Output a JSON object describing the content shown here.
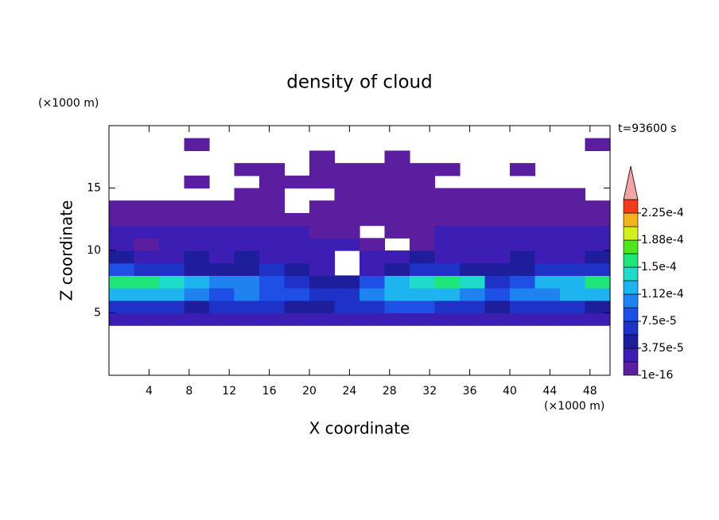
{
  "chart_data": {
    "type": "contour",
    "title": "density of cloud",
    "x_label": "X coordinate",
    "y_label": "Z coordinate",
    "x_unit": "(×1000 m)",
    "y_unit": "(×1000 m)",
    "annotation": "t=93600 s",
    "xlim": [
      0,
      50
    ],
    "ylim": [
      0,
      20
    ],
    "xticks": [
      4,
      8,
      12,
      16,
      20,
      24,
      28,
      32,
      36,
      40,
      44,
      48
    ],
    "yticks": [
      5,
      10,
      15
    ],
    "x": [
      1.25,
      3.75,
      6.25,
      8.75,
      11.25,
      13.75,
      16.25,
      18.75,
      21.25,
      23.75,
      26.25,
      28.75,
      31.25,
      33.75,
      36.25,
      38.75,
      41.25,
      43.75,
      46.25,
      48.75
    ],
    "y": [
      4.5,
      5.5,
      6.5,
      7.5,
      8.5,
      9.5,
      10.5,
      11.5,
      12.5,
      13.5,
      14.5,
      15.5,
      16.5,
      17.5,
      18.5
    ],
    "z": [
      [
        2e-05,
        2e-05,
        2e-05,
        2e-05,
        2e-05,
        2e-05,
        2e-05,
        2e-05,
        2e-05,
        2e-05,
        2e-05,
        2e-05,
        2e-05,
        2e-05,
        2e-05,
        2e-05,
        2e-05,
        2e-05,
        2e-05,
        2e-05
      ],
      [
        6e-05,
        7e-05,
        6e-05,
        5e-05,
        6e-05,
        7e-05,
        6e-05,
        5e-05,
        4e-05,
        6e-05,
        7e-05,
        8e-05,
        9e-05,
        7e-05,
        6e-05,
        5e-05,
        6e-05,
        7e-05,
        6e-05,
        5e-05
      ],
      [
        0.00012,
        0.00013,
        0.00012,
        0.0001,
        9e-05,
        0.0001,
        9e-05,
        8e-05,
        6e-05,
        7e-05,
        0.0001,
        0.00012,
        0.00012,
        0.00013,
        0.00011,
        8e-05,
        0.0001,
        0.00011,
        0.00012,
        0.00012
      ],
      [
        0.00016,
        0.00015,
        0.00014,
        0.00012,
        0.0001,
        0.00011,
        9e-05,
        7e-05,
        4e-05,
        5e-05,
        9e-05,
        0.00013,
        0.00014,
        0.00015,
        0.00014,
        7e-05,
        9e-05,
        0.00012,
        0.00013,
        0.00015
      ],
      [
        8e-05,
        7e-05,
        6e-05,
        5e-05,
        4e-05,
        5e-05,
        6e-05,
        5e-05,
        3e-05,
        null,
        3e-05,
        5e-05,
        6e-05,
        6e-05,
        5e-05,
        4e-05,
        5e-05,
        6e-05,
        6e-05,
        7e-05
      ],
      [
        4e-05,
        3e-05,
        3e-05,
        4e-05,
        3e-05,
        4e-05,
        3e-05,
        3e-05,
        3e-05,
        null,
        2e-05,
        3e-05,
        4e-05,
        3e-05,
        3e-05,
        3e-05,
        4e-05,
        3e-05,
        3e-05,
        4e-05
      ],
      [
        2e-05,
        1e-05,
        2e-05,
        3e-05,
        2e-05,
        3e-05,
        2e-05,
        2e-05,
        2e-05,
        2e-05,
        1e-05,
        null,
        1e-05,
        2e-05,
        2e-05,
        3e-05,
        2e-05,
        3e-05,
        2e-05,
        2e-05
      ],
      [
        2e-05,
        2e-05,
        3e-05,
        2e-05,
        2e-05,
        3e-05,
        2e-05,
        2e-05,
        1e-05,
        1e-05,
        null,
        1e-05,
        1e-05,
        2e-05,
        2e-05,
        2e-05,
        2e-05,
        2e-05,
        2e-05,
        2e-05
      ],
      [
        1e-05,
        1e-05,
        1e-05,
        1e-05,
        1e-05,
        1e-05,
        1e-05,
        1e-05,
        5e-06,
        5e-06,
        5e-06,
        5e-06,
        1e-05,
        1e-05,
        1e-05,
        1e-05,
        1e-05,
        1e-05,
        1e-05,
        1e-05
      ],
      [
        5e-06,
        5e-06,
        5e-06,
        5e-06,
        5e-06,
        5e-06,
        5e-06,
        null,
        5e-06,
        5e-06,
        5e-06,
        5e-06,
        5e-06,
        5e-06,
        5e-06,
        5e-06,
        5e-06,
        5e-06,
        5e-06,
        5e-06
      ],
      [
        null,
        null,
        null,
        null,
        null,
        5e-06,
        5e-06,
        null,
        null,
        5e-06,
        5e-06,
        5e-06,
        5e-06,
        5e-06,
        5e-06,
        5e-06,
        5e-06,
        5e-06,
        5e-06,
        null
      ],
      [
        null,
        null,
        null,
        5e-06,
        null,
        null,
        5e-06,
        5e-06,
        5e-06,
        5e-06,
        5e-06,
        5e-06,
        5e-06,
        null,
        null,
        null,
        null,
        null,
        null,
        null
      ],
      [
        null,
        null,
        null,
        null,
        null,
        5e-06,
        5e-06,
        null,
        5e-06,
        5e-06,
        5e-06,
        5e-06,
        5e-06,
        5e-06,
        null,
        null,
        5e-06,
        null,
        null,
        null
      ],
      [
        null,
        null,
        null,
        null,
        null,
        null,
        null,
        null,
        5e-06,
        null,
        null,
        5e-06,
        null,
        null,
        null,
        null,
        null,
        null,
        null,
        null
      ],
      [
        null,
        null,
        null,
        5e-06,
        null,
        null,
        null,
        null,
        null,
        null,
        null,
        null,
        null,
        null,
        null,
        null,
        null,
        null,
        null,
        5e-06
      ]
    ],
    "levels": [
      1e-16,
      1.875e-05,
      3.75e-05,
      5.625e-05,
      7.5e-05,
      9.375e-05,
      0.0001125,
      0.00013125,
      0.00015,
      0.00016875,
      0.0001875,
      0.00020625,
      0.000225,
      0.00024375
    ],
    "colors": [
      "#5a1e9e",
      "#3c1eb4",
      "#1e1e9c",
      "#1e32c8",
      "#1e50e6",
      "#1e82f0",
      "#1eb4f0",
      "#1edcc8",
      "#1ee678",
      "#50e61e",
      "#d2f01e",
      "#f0b41e",
      "#f03c1e"
    ],
    "over_color": "#f4a4a4",
    "colorbar_ticks": [
      1e-16,
      {
        "value": 3.75e-05,
        "label": "3.75e-5"
      },
      {
        "value": 7.5e-05,
        "label": "7.5e-5"
      },
      {
        "value": 0.0001125,
        "label": "1.12e-4"
      },
      {
        "value": 0.00015,
        "label": "1.5e-4"
      },
      {
        "value": 0.0001875,
        "label": "1.88e-4"
      },
      {
        "value": 0.000225,
        "label": "2.25e-4"
      }
    ]
  }
}
